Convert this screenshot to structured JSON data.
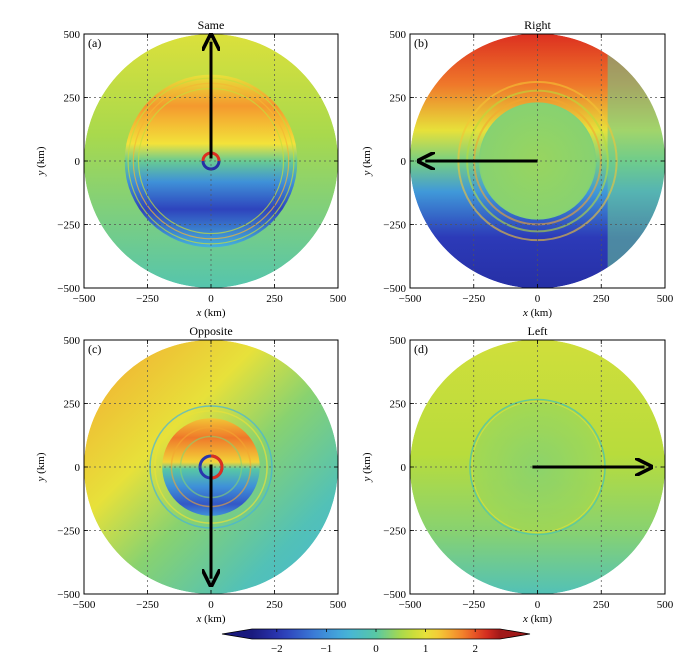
{
  "chart_data": {
    "type": "heatmap",
    "panels": [
      {
        "id": "a",
        "tag": "(a)",
        "title": "Same",
        "xlabel_var": "x",
        "xlabel_unit": " (km)",
        "ylabel_var": "y",
        "ylabel_unit": " (km)",
        "xlim": [
          -500,
          500
        ],
        "ylim": [
          -500,
          500
        ],
        "xticks": [
          -500,
          -250,
          0,
          250,
          500
        ],
        "yticks": [
          -500,
          -250,
          0,
          250,
          500
        ],
        "xtick_labels": [
          "−500",
          "−250",
          "0",
          "250",
          "500"
        ],
        "ytick_labels": [
          "−500",
          "−250",
          "0",
          "250",
          "500"
        ],
        "grid": true,
        "domain_radius_km": 500,
        "inner_ring_radius_km": 340,
        "motion_direction": "north",
        "arrow": {
          "from": [
            0,
            10
          ],
          "to": [
            0,
            470
          ]
        },
        "field_values": {
          "background": 0.3,
          "inner_north": 1.6,
          "inner_south": -1.8,
          "ring_rim": 1.0
        }
      },
      {
        "id": "b",
        "tag": "(b)",
        "title": "Right",
        "xlabel_var": "x",
        "xlabel_unit": " (km)",
        "ylabel_var": "y",
        "ylabel_unit": " (km)",
        "xlim": [
          -500,
          500
        ],
        "ylim": [
          -500,
          500
        ],
        "xticks": [
          -500,
          -250,
          0,
          250,
          500
        ],
        "yticks": [
          -500,
          -250,
          0,
          250,
          500
        ],
        "xtick_labels": [
          "−500",
          "−250",
          "0",
          "250",
          "500"
        ],
        "ytick_labels": [
          "−500",
          "−250",
          "0",
          "250",
          "500"
        ],
        "grid": true,
        "domain_radius_km": 500,
        "inner_ring_radius_km": 230,
        "motion_direction": "west",
        "arrow": {
          "from": [
            0,
            0
          ],
          "to": [
            -440,
            0
          ]
        },
        "field_values": {
          "background": 0.2,
          "outer_north": 1.8,
          "outer_south": -1.9,
          "inner_core": 0.4
        }
      },
      {
        "id": "c",
        "tag": "(c)",
        "title": "Opposite",
        "xlabel_var": "x",
        "xlabel_unit": " (km)",
        "ylabel_var": "y",
        "ylabel_unit": " (km)",
        "xlim": [
          -500,
          500
        ],
        "ylim": [
          -500,
          500
        ],
        "xticks": [
          -500,
          -250,
          0,
          250,
          500
        ],
        "yticks": [
          -500,
          -250,
          0,
          250,
          500
        ],
        "xtick_labels": [
          "−500",
          "−250",
          "0",
          "250",
          "500"
        ],
        "ytick_labels": [
          "−500",
          "−250",
          "0",
          "250",
          "500"
        ],
        "grid": true,
        "domain_radius_km": 500,
        "inner_ring_radius_km": 240,
        "motion_direction": "south",
        "arrow": {
          "from": [
            0,
            10
          ],
          "to": [
            0,
            -440
          ]
        },
        "field_values": {
          "outer_northwest": 1.5,
          "outer_southeast": -0.5,
          "inner_north": 1.8,
          "inner_south": -1.6
        }
      },
      {
        "id": "d",
        "tag": "(d)",
        "title": "Left",
        "xlabel_var": "x",
        "xlabel_unit": " (km)",
        "ylabel_var": "y",
        "ylabel_unit": " (km)",
        "xlim": [
          -500,
          500
        ],
        "ylim": [
          -500,
          500
        ],
        "xticks": [
          -500,
          -250,
          0,
          250,
          500
        ],
        "yticks": [
          -500,
          -250,
          0,
          250,
          500
        ],
        "xtick_labels": [
          "−500",
          "−250",
          "0",
          "250",
          "500"
        ],
        "ytick_labels": [
          "−500",
          "−250",
          "0",
          "250",
          "500"
        ],
        "grid": true,
        "domain_radius_km": 500,
        "inner_ring_radius_km": 265,
        "motion_direction": "east",
        "arrow": {
          "from": [
            -20,
            0
          ],
          "to": [
            420,
            0
          ]
        },
        "field_values": {
          "background": 0.6,
          "north_edge": 0.8,
          "south_edge": -0.2,
          "inner_core": 0.3
        }
      }
    ],
    "colorbar": {
      "range": [
        -2.5,
        2.5
      ],
      "ticks": [
        -2,
        -1,
        0,
        1,
        2
      ],
      "tick_labels": [
        "−2",
        "−1",
        "0",
        "1",
        "2"
      ],
      "extend": "both",
      "colormap": "jet"
    }
  }
}
